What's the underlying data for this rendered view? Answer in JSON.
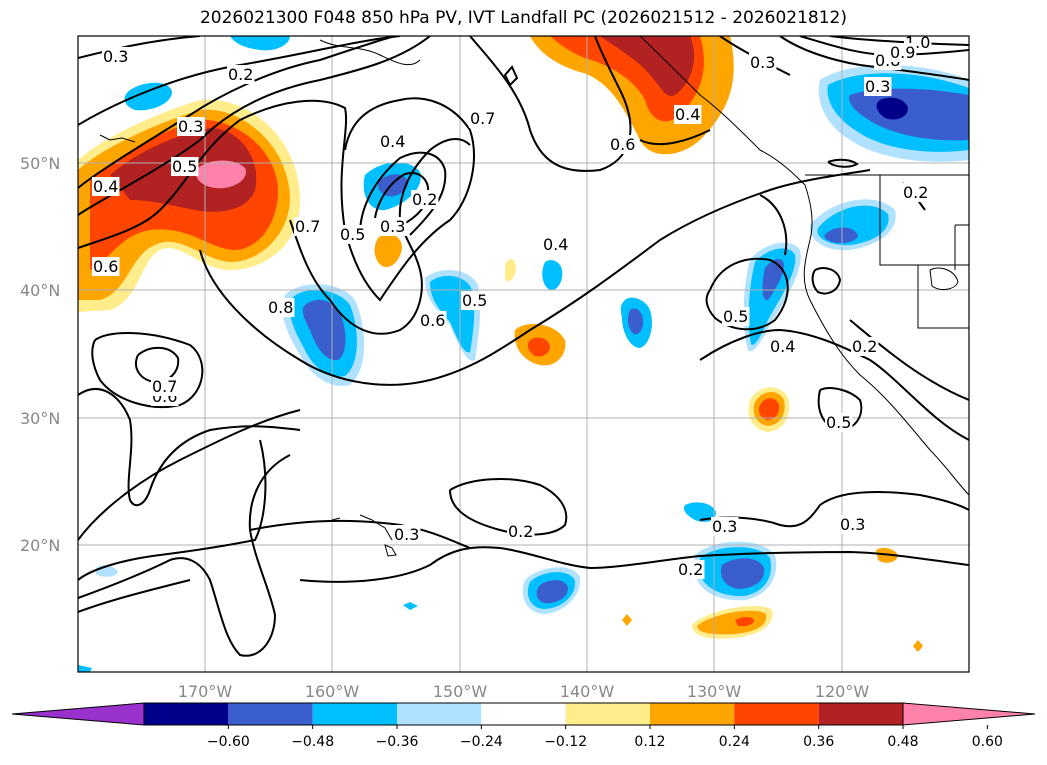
{
  "title": "2026021300 F048 850 hPa PV, IVT Landfall PC (2026021512 - 2026021812)",
  "map": {
    "lon_range": [
      -180,
      -110
    ],
    "lat_range": [
      10,
      60
    ],
    "lat_ticks": [
      {
        "value": 50,
        "label": "50°N"
      },
      {
        "value": 40,
        "label": "40°N"
      },
      {
        "value": 30,
        "label": "30°N"
      },
      {
        "value": 20,
        "label": "20°N"
      }
    ],
    "lon_ticks": [
      {
        "value": -170,
        "label": "170°W"
      },
      {
        "value": -160,
        "label": "160°W"
      },
      {
        "value": -150,
        "label": "150°W"
      },
      {
        "value": -140,
        "label": "140°W"
      },
      {
        "value": -130,
        "label": "130°W"
      },
      {
        "value": -120,
        "label": "120°W"
      }
    ],
    "gridlines": true
  },
  "contour_labels": [
    "0.3",
    "0.2",
    "0.3",
    "0.5",
    "0.4",
    "0.6",
    "0.7",
    "0.4",
    "0.2",
    "0.3",
    "0.5",
    "0.8",
    "0.6",
    "0.5",
    "0.4",
    "0.7",
    "0.6",
    "0.3",
    "0.2",
    "0.2",
    "0.3",
    "0.3",
    "0.2",
    "0.5",
    "0.4",
    "0.2",
    "0.5",
    "0.3",
    "0.6",
    "0.7",
    "0.4",
    "0.3",
    "1.0",
    "0.8",
    "0.9"
  ],
  "colorbar": {
    "extend": "both",
    "colors": [
      "#9932cc",
      "#00008b",
      "#3a5fcd",
      "#00bfff",
      "#b0e2ff",
      "#ffffff",
      "#ffec8b",
      "#ffa500",
      "#ff4500",
      "#b22222",
      "#ff82ab"
    ],
    "tick_labels": [
      "−0.60",
      "−0.48",
      "−0.36",
      "−0.24",
      "−0.12",
      "0.12",
      "0.24",
      "0.36",
      "0.48",
      "0.60"
    ]
  }
}
